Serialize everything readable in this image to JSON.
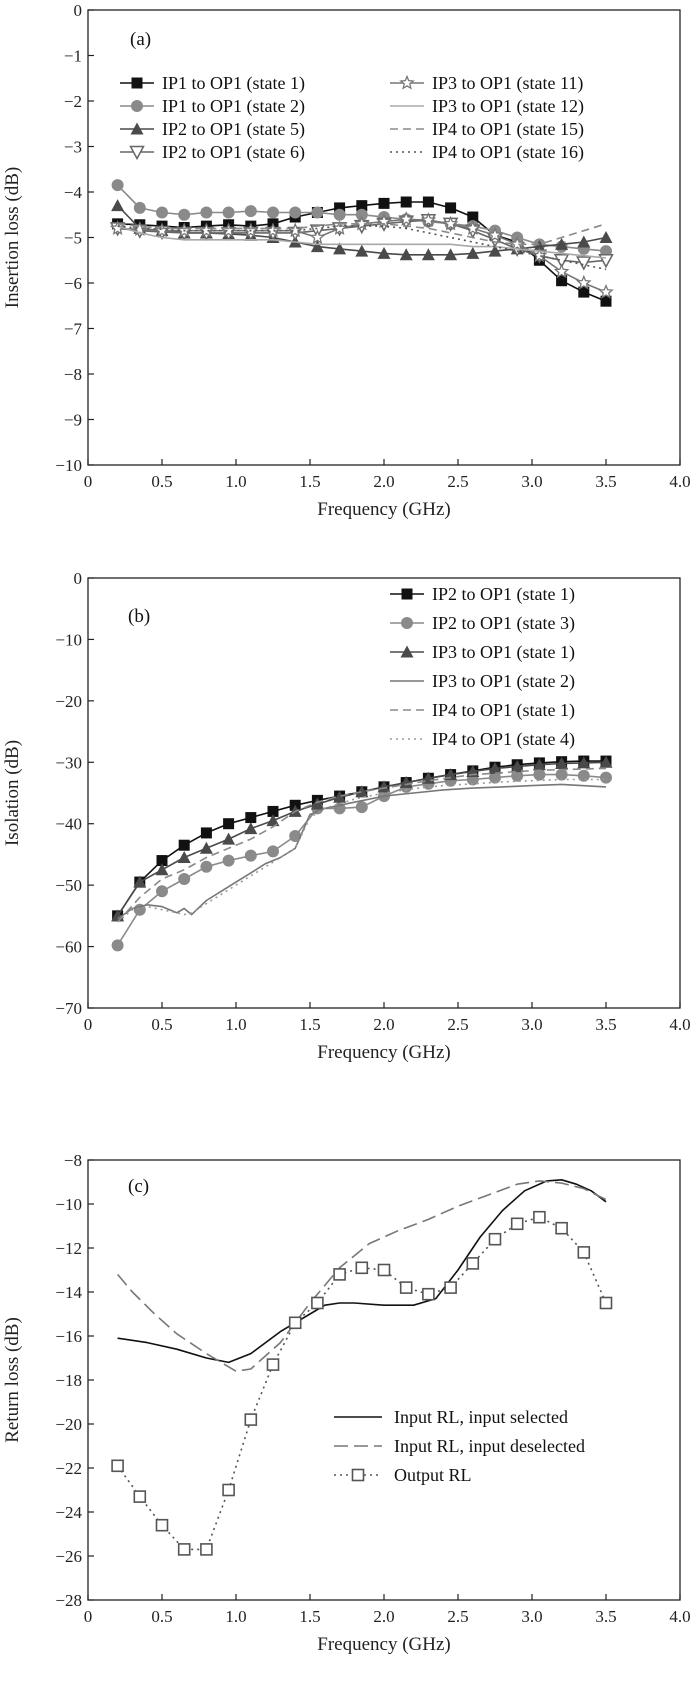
{
  "chart_data": [
    {
      "type": "line",
      "panel_label": "(a)",
      "xlabel": "Frequency (GHz)",
      "ylabel": "Insertion loss (dB)",
      "xlim": [
        0,
        4.0
      ],
      "ylim": [
        -10,
        0
      ],
      "xticks": [
        "0",
        "0.5",
        "1.0",
        "1.5",
        "2.0",
        "2.5",
        "3.0",
        "3.5",
        "4.0"
      ],
      "yticks": [
        "0",
        "−1",
        "−2",
        "−3",
        "−4",
        "−5",
        "−6",
        "−7",
        "−8",
        "−9",
        "−10"
      ],
      "legend_placement": "top, two columns",
      "series": [
        {
          "name": "IP1 to OP1 (state 1)",
          "color": "#111111",
          "dash": "solid",
          "marker": "square-filled",
          "x": [
            0.2,
            0.35,
            0.5,
            0.65,
            0.8,
            0.95,
            1.1,
            1.25,
            1.4,
            1.55,
            1.7,
            1.85,
            2.0,
            2.15,
            2.3,
            2.45,
            2.6,
            2.75,
            2.9,
            3.05,
            3.2,
            3.35,
            3.5
          ],
          "y": [
            -4.7,
            -4.72,
            -4.75,
            -4.78,
            -4.75,
            -4.72,
            -4.75,
            -4.7,
            -4.55,
            -4.45,
            -4.35,
            -4.3,
            -4.25,
            -4.22,
            -4.22,
            -4.35,
            -4.55,
            -4.95,
            -5.1,
            -5.5,
            -5.95,
            -6.2,
            -6.4
          ]
        },
        {
          "name": "IP1 to OP1 (state 2)",
          "color": "#8a8a8a",
          "dash": "solid",
          "marker": "circle-filled",
          "x": [
            0.2,
            0.35,
            0.5,
            0.65,
            0.8,
            0.95,
            1.1,
            1.25,
            1.4,
            1.55,
            1.7,
            1.85,
            2.0,
            2.15,
            2.3,
            2.45,
            2.6,
            2.75,
            2.9,
            3.05,
            3.2,
            3.35,
            3.5
          ],
          "y": [
            -3.85,
            -4.35,
            -4.45,
            -4.5,
            -4.45,
            -4.45,
            -4.42,
            -4.45,
            -4.45,
            -4.45,
            -4.5,
            -4.5,
            -4.55,
            -4.6,
            -4.65,
            -4.7,
            -4.75,
            -4.85,
            -5.0,
            -5.15,
            -5.2,
            -5.25,
            -5.3
          ]
        },
        {
          "name": "IP2 to OP1 (state 5)",
          "color": "#4a4a4a",
          "dash": "solid",
          "marker": "triangle-filled",
          "x": [
            0.2,
            0.35,
            0.5,
            0.65,
            0.8,
            0.95,
            1.1,
            1.25,
            1.4,
            1.55,
            1.7,
            1.85,
            2.0,
            2.15,
            2.3,
            2.45,
            2.6,
            2.75,
            2.9,
            3.05,
            3.2,
            3.35,
            3.5
          ],
          "y": [
            -4.3,
            -4.8,
            -4.85,
            -4.9,
            -4.9,
            -4.92,
            -4.95,
            -5.0,
            -5.1,
            -5.2,
            -5.25,
            -5.3,
            -5.35,
            -5.38,
            -5.38,
            -5.38,
            -5.35,
            -5.3,
            -5.25,
            -5.2,
            -5.15,
            -5.1,
            -5.0
          ]
        },
        {
          "name": "IP2 to OP1 (state 6)",
          "color": "#666666",
          "dash": "solid",
          "marker": "triangle-down-open",
          "x": [
            0.2,
            0.35,
            0.5,
            0.65,
            0.8,
            0.95,
            1.1,
            1.25,
            1.4,
            1.55,
            1.7,
            1.85,
            2.0,
            2.15,
            2.3,
            2.45,
            2.6,
            2.75,
            2.9,
            3.05,
            3.2,
            3.35,
            3.5
          ],
          "y": [
            -4.8,
            -4.85,
            -4.88,
            -4.9,
            -4.9,
            -4.9,
            -4.9,
            -4.9,
            -4.9,
            -4.85,
            -4.8,
            -4.75,
            -4.7,
            -4.65,
            -4.62,
            -4.7,
            -4.85,
            -5.05,
            -5.25,
            -5.4,
            -5.5,
            -5.55,
            -5.5
          ]
        },
        {
          "name": "IP3 to OP1 (state 11)",
          "color": "#777777",
          "dash": "solid",
          "marker": "star-open",
          "x": [
            0.2,
            0.35,
            0.5,
            0.65,
            0.8,
            0.95,
            1.1,
            1.25,
            1.4,
            1.55,
            1.7,
            1.85,
            2.0,
            2.15,
            2.3,
            2.45,
            2.6,
            2.75,
            2.9,
            3.05,
            3.2,
            3.35,
            3.5
          ],
          "y": [
            -4.8,
            -4.82,
            -4.85,
            -4.85,
            -4.85,
            -4.85,
            -4.85,
            -4.85,
            -4.85,
            -5.0,
            -4.8,
            -4.7,
            -4.65,
            -4.6,
            -4.62,
            -4.7,
            -4.8,
            -4.95,
            -5.15,
            -5.4,
            -5.75,
            -6.0,
            -6.2
          ]
        },
        {
          "name": "IP3 to OP1 (state 12)",
          "color": "#a8a8a8",
          "dash": "solid",
          "marker": "none",
          "x": [
            0.2,
            0.35,
            0.5,
            0.65,
            0.8,
            0.95,
            1.1,
            1.25,
            1.4,
            1.55,
            1.7,
            1.85,
            2.0,
            2.15,
            2.3,
            2.45,
            2.6,
            2.75,
            2.9,
            3.05,
            3.2,
            3.35,
            3.5
          ],
          "y": [
            -4.75,
            -4.9,
            -5.0,
            -5.05,
            -5.05,
            -5.05,
            -5.05,
            -5.05,
            -5.1,
            -5.15,
            -5.15,
            -5.15,
            -5.15,
            -5.15,
            -5.15,
            -5.15,
            -5.2,
            -5.2,
            -5.25,
            -5.3,
            -5.35,
            -5.4,
            -5.45
          ]
        },
        {
          "name": "IP4 to OP1 (state 15)",
          "color": "#8a8a8a",
          "dash": "dashed",
          "marker": "none",
          "x": [
            0.2,
            0.35,
            0.5,
            0.65,
            0.8,
            0.95,
            1.1,
            1.25,
            1.4,
            1.55,
            1.7,
            1.85,
            2.0,
            2.15,
            2.3,
            2.45,
            2.6,
            2.75,
            2.9,
            3.05,
            3.2,
            3.35,
            3.5
          ],
          "y": [
            -4.7,
            -4.75,
            -4.8,
            -4.8,
            -4.8,
            -4.8,
            -4.8,
            -4.8,
            -4.8,
            -4.75,
            -4.7,
            -4.7,
            -4.7,
            -4.75,
            -4.8,
            -4.9,
            -5.0,
            -5.1,
            -5.15,
            -5.15,
            -5.0,
            -4.85,
            -4.7
          ]
        },
        {
          "name": "IP4 to OP1 (state 16)",
          "color": "#555555",
          "dash": "dotted",
          "marker": "none",
          "x": [
            0.2,
            0.35,
            0.5,
            0.65,
            0.8,
            0.95,
            1.1,
            1.25,
            1.4,
            1.55,
            1.7,
            1.85,
            2.0,
            2.15,
            2.3,
            2.45,
            2.6,
            2.75,
            2.9,
            3.05,
            3.2,
            3.35,
            3.5
          ],
          "y": [
            -4.75,
            -4.8,
            -4.82,
            -4.85,
            -4.85,
            -4.85,
            -4.85,
            -4.85,
            -4.85,
            -4.8,
            -4.75,
            -4.75,
            -4.75,
            -4.8,
            -4.9,
            -5.0,
            -5.1,
            -5.2,
            -5.3,
            -5.4,
            -5.5,
            -5.6,
            -5.7
          ]
        }
      ]
    },
    {
      "type": "line",
      "panel_label": "(b)",
      "xlabel": "Frequency (GHz)",
      "ylabel": "Isolation (dB)",
      "xlim": [
        0,
        4.0
      ],
      "ylim": [
        -70,
        0
      ],
      "xticks": [
        "0",
        "0.5",
        "1.0",
        "1.5",
        "2.0",
        "2.5",
        "3.0",
        "3.5",
        "4.0"
      ],
      "yticks": [
        "0",
        "−10",
        "−20",
        "−30",
        "−40",
        "−50",
        "−60",
        "−70"
      ],
      "legend_placement": "top-right",
      "series": [
        {
          "name": "IP2 to OP1 (state 1)",
          "color": "#111111",
          "dash": "solid",
          "marker": "square-filled",
          "x": [
            0.2,
            0.35,
            0.5,
            0.65,
            0.8,
            0.95,
            1.1,
            1.25,
            1.4,
            1.55,
            1.7,
            1.85,
            2.0,
            2.15,
            2.3,
            2.45,
            2.6,
            2.75,
            2.9,
            3.05,
            3.2,
            3.35,
            3.5
          ],
          "y": [
            -55,
            -49.5,
            -46,
            -43.5,
            -41.5,
            -40,
            -39,
            -38,
            -37,
            -36.2,
            -35.5,
            -34.8,
            -34,
            -33.3,
            -32.6,
            -32,
            -31.4,
            -30.8,
            -30.4,
            -30.1,
            -29.9,
            -29.8,
            -29.8
          ]
        },
        {
          "name": "IP2 to OP1 (state 3)",
          "color": "#8a8a8a",
          "dash": "solid",
          "marker": "circle-filled",
          "x": [
            0.2,
            0.35,
            0.5,
            0.65,
            0.8,
            0.95,
            1.1,
            1.25,
            1.4,
            1.55,
            1.7,
            1.85,
            2.0,
            2.15,
            2.3,
            2.45,
            2.6,
            2.75,
            2.9,
            3.05,
            3.2,
            3.35,
            3.5
          ],
          "y": [
            -59.8,
            -54,
            -51,
            -49,
            -47,
            -46,
            -45.2,
            -44.5,
            -42,
            -37.5,
            -37.5,
            -37.3,
            -35.5,
            -34,
            -33.5,
            -33,
            -32.8,
            -32.5,
            -32.2,
            -32,
            -32,
            -32.2,
            -32.5
          ]
        },
        {
          "name": "IP3 to OP1 (state 1)",
          "color": "#4a4a4a",
          "dash": "solid",
          "marker": "triangle-filled",
          "x": [
            0.2,
            0.35,
            0.5,
            0.65,
            0.8,
            0.95,
            1.1,
            1.25,
            1.4,
            1.55,
            1.7,
            1.85,
            2.0,
            2.15,
            2.3,
            2.45,
            2.6,
            2.75,
            2.9,
            3.05,
            3.2,
            3.35,
            3.5
          ],
          "y": [
            -55,
            -49.5,
            -47.5,
            -45.5,
            -44,
            -42.5,
            -40.8,
            -39.5,
            -38,
            -36.8,
            -35.7,
            -34.8,
            -34,
            -33.3,
            -32.6,
            -32,
            -31.5,
            -31,
            -30.7,
            -30.4,
            -30.2,
            -30.1,
            -30
          ]
        },
        {
          "name": "IP3 to OP1 (state 2)",
          "color": "#777777",
          "dash": "solid",
          "marker": "none",
          "x": [
            0.2,
            0.3,
            0.4,
            0.5,
            0.6,
            0.65,
            0.7,
            0.8,
            0.9,
            1.0,
            1.1,
            1.2,
            1.3,
            1.4,
            1.5,
            1.6,
            1.8,
            2.0,
            2.2,
            2.4,
            2.6,
            2.8,
            3.0,
            3.2,
            3.5
          ],
          "y": [
            -55.5,
            -53.8,
            -53.2,
            -53.5,
            -54.5,
            -53.8,
            -54.8,
            -52.5,
            -51,
            -49.5,
            -48,
            -46.5,
            -45.5,
            -44,
            -38.5,
            -37.5,
            -36.5,
            -35.5,
            -35,
            -34.5,
            -34.2,
            -34,
            -33.8,
            -33.6,
            -34
          ]
        },
        {
          "name": "IP4 to OP1 (state 1)",
          "color": "#8a8a8a",
          "dash": "dashed",
          "marker": "none",
          "x": [
            0.2,
            0.35,
            0.5,
            0.65,
            0.8,
            0.95,
            1.1,
            1.25,
            1.4,
            1.55,
            1.7,
            1.85,
            2.0,
            2.15,
            2.3,
            2.45,
            2.6,
            2.75,
            2.9,
            3.05,
            3.2,
            3.35,
            3.5
          ],
          "y": [
            -56,
            -52,
            -49,
            -47.5,
            -45.5,
            -44,
            -42.5,
            -40.5,
            -38,
            -36.5,
            -35.5,
            -34.8,
            -34.2,
            -33.6,
            -33,
            -32.5,
            -32,
            -31.8,
            -31.5,
            -31.3,
            -31.2,
            -31.1,
            -31
          ]
        },
        {
          "name": "IP4 to OP1 (state 4)",
          "color": "#9a9a9a",
          "dash": "dotted",
          "marker": "none",
          "x": [
            0.2,
            0.3,
            0.4,
            0.5,
            0.6,
            0.65,
            0.7,
            0.8,
            0.9,
            1.0,
            1.1,
            1.2,
            1.3,
            1.4,
            1.5,
            1.6,
            1.8,
            2.0,
            2.2,
            2.4,
            2.6,
            2.8,
            3.0,
            3.2,
            3.5
          ],
          "y": [
            -56,
            -54,
            -53.5,
            -54,
            -54.5,
            -54.8,
            -54.5,
            -53,
            -51.5,
            -50,
            -48.5,
            -47,
            -45.5,
            -44,
            -39,
            -37.5,
            -36,
            -35,
            -34.3,
            -33.8,
            -33.5,
            -33.2,
            -33,
            -32.8,
            -32.8
          ]
        }
      ]
    },
    {
      "type": "line",
      "panel_label": "(c)",
      "xlabel": "Frequency (GHz)",
      "ylabel": "Return loss (dB)",
      "xlim": [
        0,
        4.0
      ],
      "ylim": [
        -28,
        -8
      ],
      "xticks": [
        "0",
        "0.5",
        "1.0",
        "1.5",
        "2.0",
        "2.5",
        "3.0",
        "3.5",
        "4.0"
      ],
      "yticks": [
        "−8",
        "−10",
        "−12",
        "−14",
        "−16",
        "−18",
        "−20",
        "−22",
        "−24",
        "−26",
        "−28"
      ],
      "legend_placement": "lower-right",
      "series": [
        {
          "name": "Input RL, input selected",
          "color": "#111111",
          "dash": "solid",
          "marker": "none",
          "x": [
            0.2,
            0.4,
            0.6,
            0.8,
            0.95,
            1.1,
            1.3,
            1.5,
            1.6,
            1.7,
            1.8,
            2.0,
            2.2,
            2.35,
            2.5,
            2.65,
            2.8,
            2.95,
            3.1,
            3.2,
            3.3,
            3.4,
            3.5
          ],
          "y": [
            -16.1,
            -16.3,
            -16.6,
            -17,
            -17.2,
            -16.8,
            -15.8,
            -15,
            -14.6,
            -14.5,
            -14.5,
            -14.6,
            -14.6,
            -14.3,
            -13,
            -11.5,
            -10.3,
            -9.4,
            -8.95,
            -8.9,
            -9.1,
            -9.4,
            -9.9
          ]
        },
        {
          "name": "Input RL, input deselected",
          "color": "#777777",
          "dash": "long-dash",
          "marker": "none",
          "x": [
            0.2,
            0.3,
            0.45,
            0.6,
            0.8,
            1.0,
            1.1,
            1.3,
            1.5,
            1.7,
            1.9,
            2.1,
            2.3,
            2.5,
            2.7,
            2.9,
            3.05,
            3.2,
            3.35,
            3.5
          ],
          "y": [
            -13.2,
            -14,
            -15,
            -15.9,
            -16.8,
            -17.6,
            -17.5,
            -16.3,
            -14.5,
            -12.9,
            -11.8,
            -11.2,
            -10.7,
            -10.1,
            -9.6,
            -9.1,
            -8.95,
            -9.05,
            -9.3,
            -9.8
          ]
        },
        {
          "name": "Output RL",
          "color": "#555555",
          "dash": "dotted",
          "marker": "square-open",
          "x": [
            0.2,
            0.35,
            0.5,
            0.65,
            0.8,
            0.95,
            1.1,
            1.25,
            1.4,
            1.55,
            1.7,
            1.85,
            2.0,
            2.15,
            2.3,
            2.45,
            2.6,
            2.75,
            2.9,
            3.05,
            3.2,
            3.35,
            3.5
          ],
          "y": [
            -21.9,
            -23.3,
            -24.6,
            -25.7,
            -25.7,
            -23,
            -19.8,
            -17.3,
            -15.4,
            -14.5,
            -13.2,
            -12.9,
            -13,
            -13.8,
            -14.1,
            -13.8,
            -12.7,
            -11.6,
            -10.9,
            -10.6,
            -11.1,
            -12.2,
            -14.5
          ]
        }
      ]
    }
  ]
}
